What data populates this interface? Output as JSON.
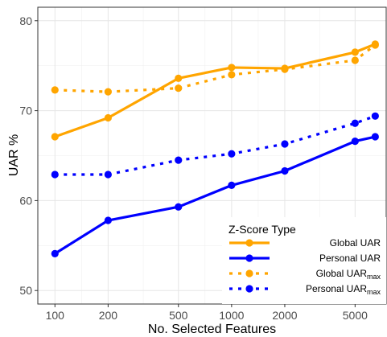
{
  "chart_data": {
    "type": "line",
    "xlabel": "No. Selected Features",
    "ylabel": "UAR %",
    "x_scale": "log",
    "x_ticks": [
      100,
      200,
      500,
      1000,
      2000,
      5000
    ],
    "y_ticks": [
      50,
      60,
      70,
      80
    ],
    "xlim": [
      80,
      7500
    ],
    "ylim": [
      48.5,
      81.5
    ],
    "grid": true,
    "legend": {
      "title": "Z-Score Type",
      "position": "bottom-right"
    },
    "x": [
      100,
      200,
      500,
      1000,
      2000,
      5000,
      6500
    ],
    "series": [
      {
        "name": "Global UAR",
        "name_sub": "",
        "color": "#FFA500",
        "dash": "solid",
        "values": [
          67.1,
          69.2,
          73.6,
          74.8,
          74.7,
          76.5,
          77.4
        ]
      },
      {
        "name": "Personal UAR",
        "name_sub": "",
        "color": "#0000FF",
        "dash": "solid",
        "values": [
          54.1,
          57.8,
          59.3,
          61.7,
          63.3,
          66.6,
          67.1
        ]
      },
      {
        "name": "Global UAR",
        "name_sub": "max",
        "color": "#FFA500",
        "dash": "dotted",
        "values": [
          72.3,
          72.1,
          72.5,
          74.0,
          74.6,
          75.6,
          77.3
        ]
      },
      {
        "name": "Personal UAR",
        "name_sub": "max",
        "color": "#0000FF",
        "dash": "dotted",
        "values": [
          62.9,
          62.9,
          64.5,
          65.2,
          66.3,
          68.6,
          69.4
        ]
      }
    ]
  }
}
